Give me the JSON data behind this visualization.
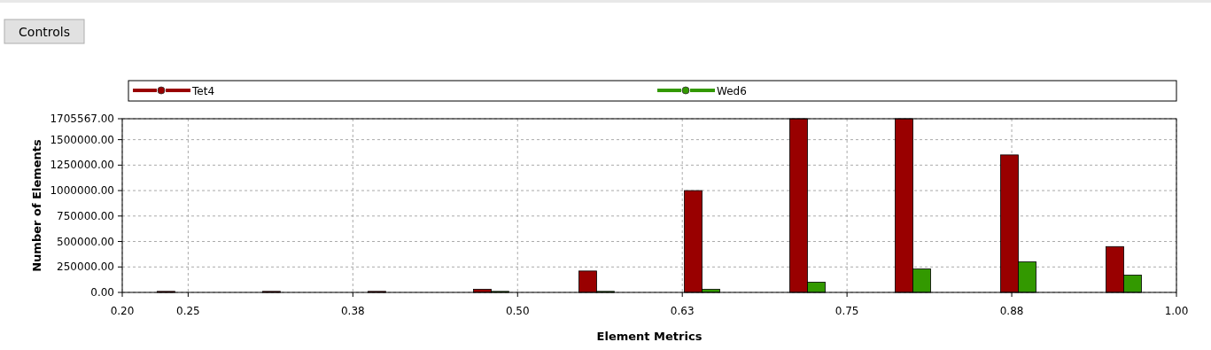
{
  "chart_data": {
    "type": "bar",
    "xlabel": "Element Metrics",
    "ylabel": "Number of Elements",
    "annotations": [
      "Controls"
    ],
    "x": [
      0.24,
      0.32,
      0.4,
      0.48,
      0.56,
      0.64,
      0.72,
      0.8,
      0.88,
      0.96
    ],
    "series": [
      {
        "name": "Tet4",
        "color": "#990000",
        "values": [
          10000,
          10000,
          10000,
          30000,
          210000,
          1000000,
          1705567,
          1705567,
          1350000,
          450000
        ]
      },
      {
        "name": "Wed6",
        "color": "#339900",
        "values": [
          0,
          0,
          0,
          10000,
          10000,
          30000,
          100000,
          230000,
          300000,
          170000
        ]
      }
    ],
    "xlim": [
      0.2,
      1.0
    ],
    "xticks": [
      {
        "value": 0.2,
        "label": "0.20"
      },
      {
        "value": 0.25,
        "label": "0.25"
      },
      {
        "value": 0.375,
        "label": "0.38"
      },
      {
        "value": 0.5,
        "label": "0.50"
      },
      {
        "value": 0.625,
        "label": "0.63"
      },
      {
        "value": 0.75,
        "label": "0.75"
      },
      {
        "value": 0.875,
        "label": "0.88"
      },
      {
        "value": 1.0,
        "label": "1.00"
      }
    ],
    "ylim": [
      0,
      1705567
    ],
    "yticks": [
      {
        "value": 0,
        "label": "0.00"
      },
      {
        "value": 250000,
        "label": "250000.00"
      },
      {
        "value": 500000,
        "label": "500000.00"
      },
      {
        "value": 750000,
        "label": "750000.00"
      },
      {
        "value": 1000000,
        "label": "1000000.00"
      },
      {
        "value": 1250000,
        "label": "1250000.00"
      },
      {
        "value": 1500000,
        "label": "1500000.00"
      },
      {
        "value": 1705567,
        "label": "1705567.00"
      }
    ],
    "grid": true,
    "legend": "top"
  }
}
